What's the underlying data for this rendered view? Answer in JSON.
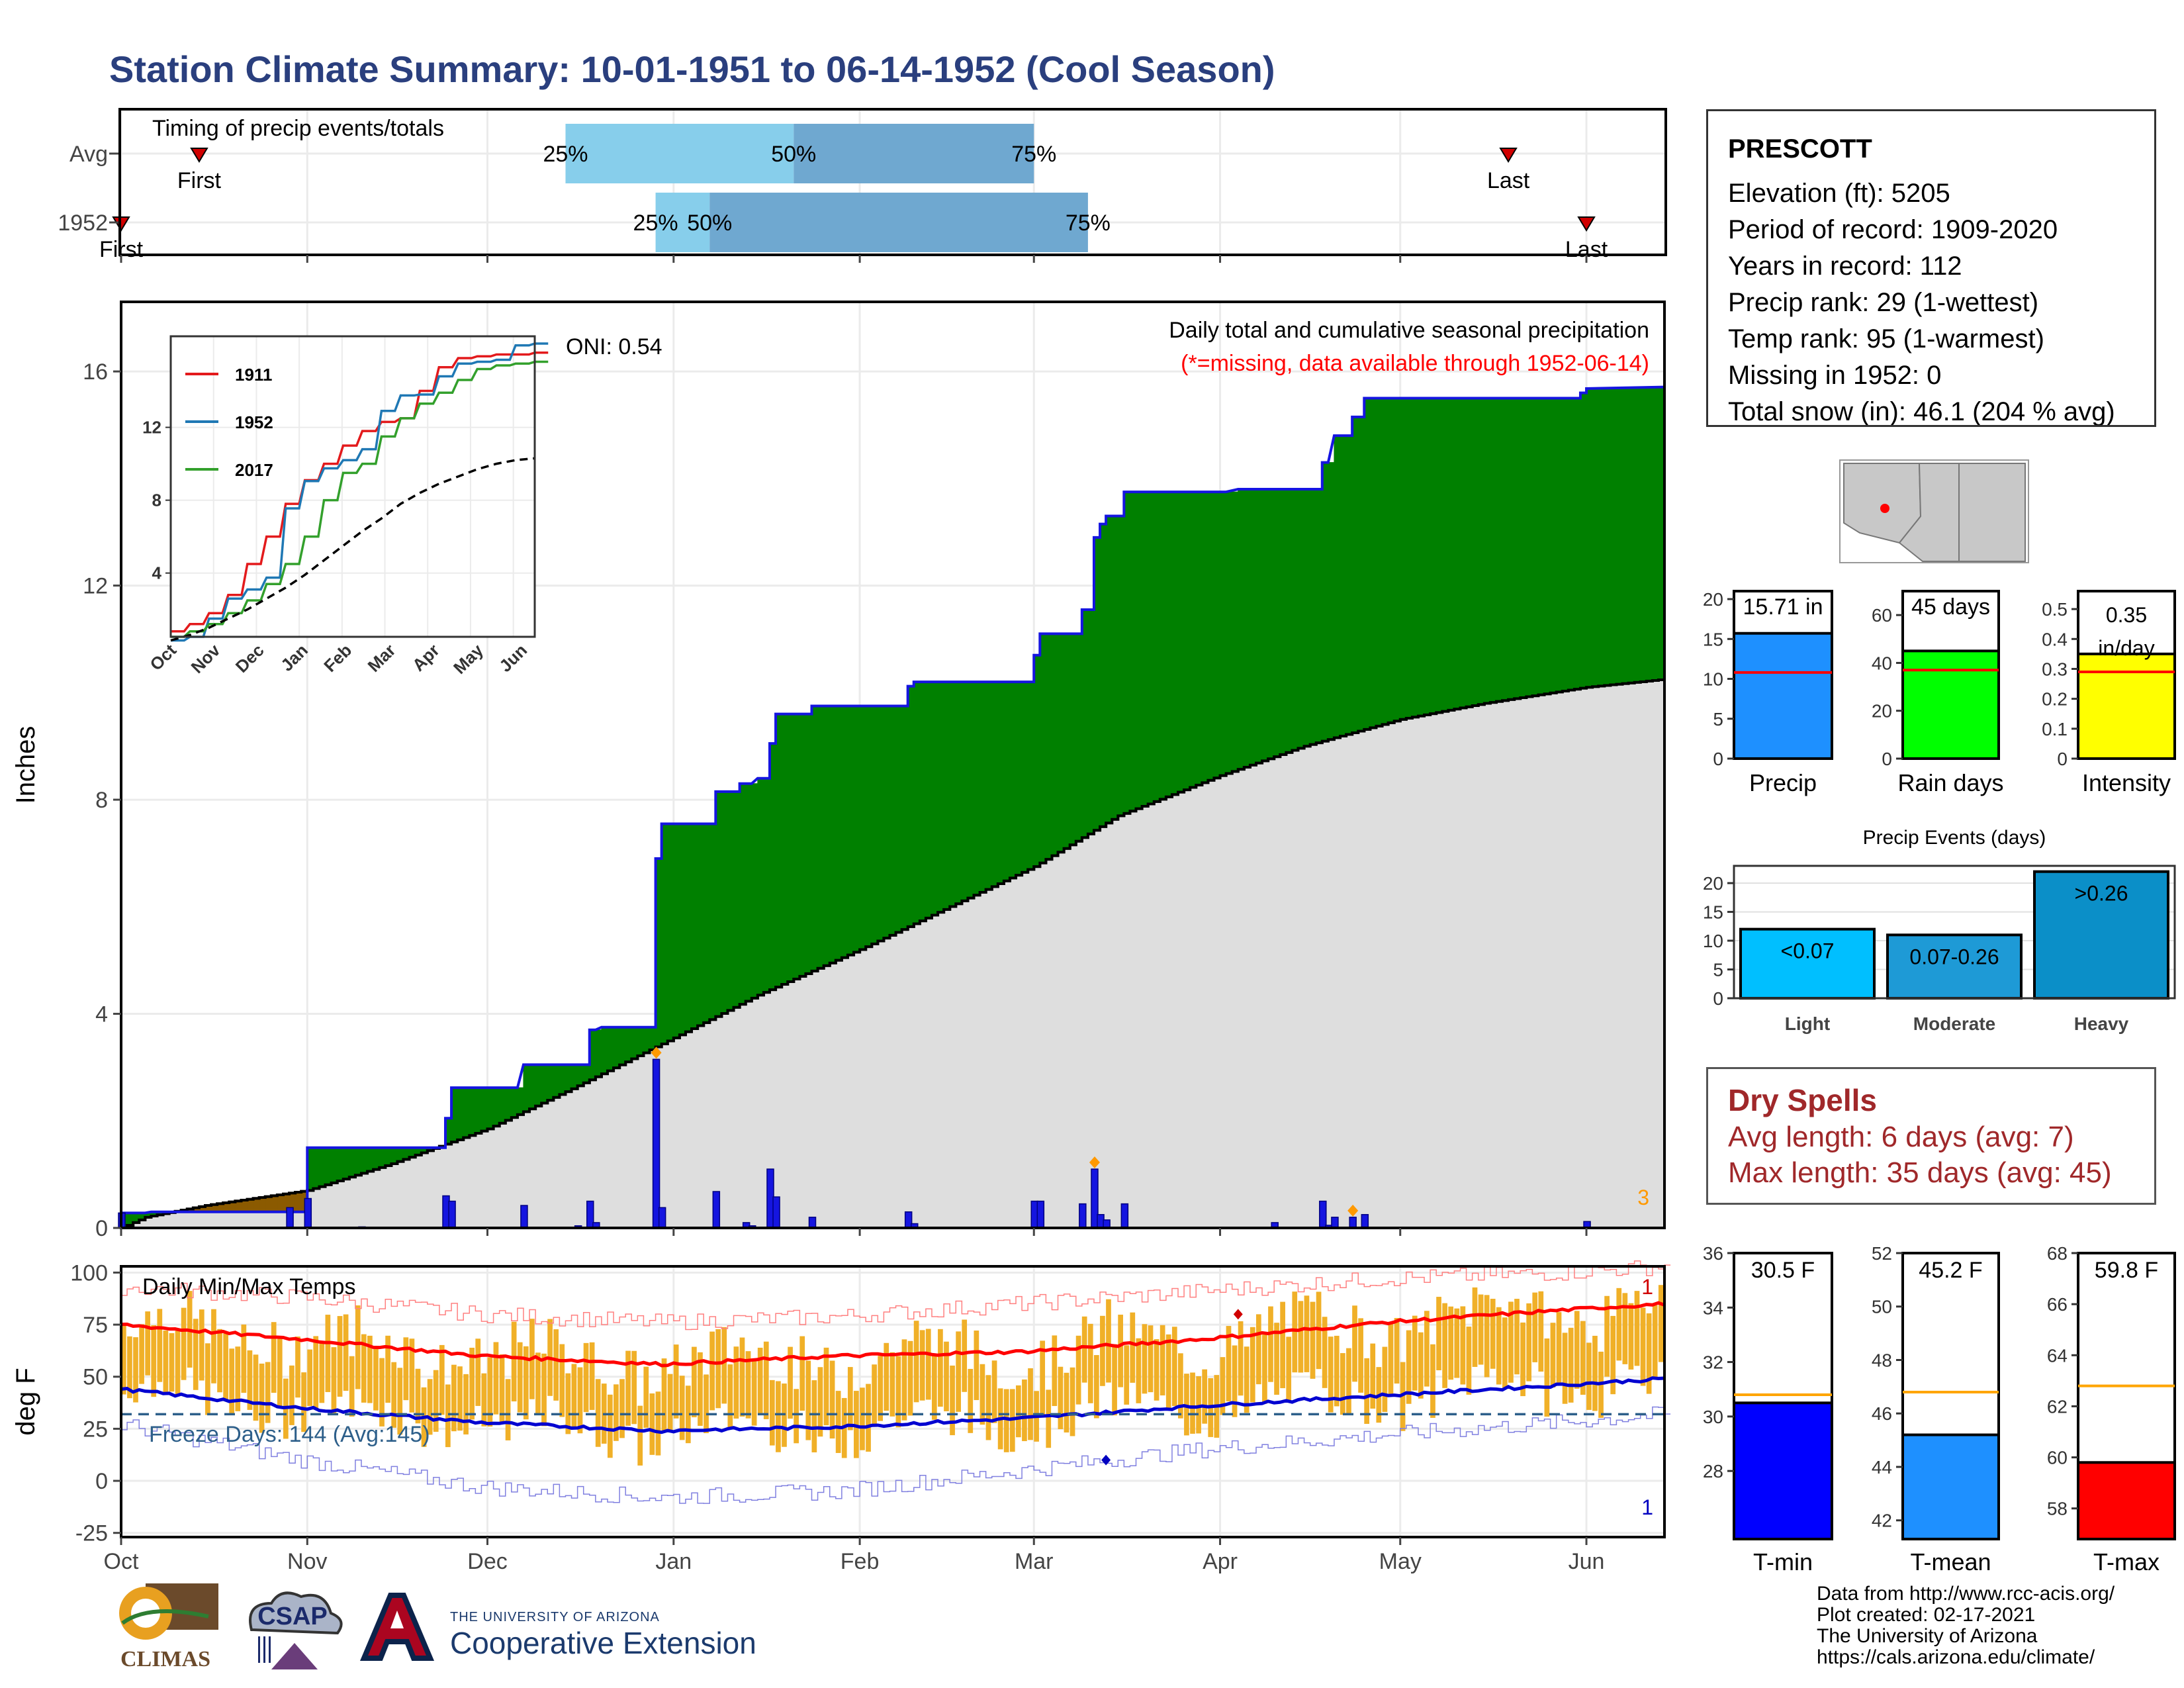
{
  "title": "Station Climate Summary: 10-01-1951 to 06-14-1952 (Cool Season)",
  "station": {
    "name": "PRESCOTT",
    "lines": [
      "Elevation (ft): 5205",
      "Period of record: 1909-2020",
      "Years in record: 112",
      "Precip rank: 29 (1-wettest)",
      "Temp rank: 95 (1-warmest)",
      "Missing in 1952: 0",
      "Total snow (in): 46.1 (204 % avg)"
    ]
  },
  "dry_spells": {
    "title": "Dry Spells",
    "avg": "Avg length: 6 days (avg: 7)",
    "max": "Max length: 35 days (avg: 45)"
  },
  "credits": {
    "lines": [
      "Data from http://www.rcc-acis.org/",
      "Plot created: 02-17-2021",
      "The University of Arizona",
      "https://cals.arizona.edu/climate/"
    ]
  },
  "logos": {
    "climas": "CLIMAS",
    "csap": "CSAP",
    "ua_small": "THE UNIVERSITY OF ARIZONA",
    "ua_big": "Cooperative Extension"
  },
  "colors": {
    "title": "#2a3f7e",
    "green_surplus": "#008000",
    "brown_deficit": "#8b5a00",
    "avg_gray": "#dedede",
    "cum_line": "#1515e0",
    "bar_blue": "#1515e0",
    "temp_bar": "#f0b028",
    "tmax_line": "#ff0000",
    "tmin_line": "#0000d0",
    "light_blue": "#87ceeb",
    "mid_blue": "#6fa8d0",
    "dry_red": "#a0282a"
  },
  "chart_data": {
    "timing": {
      "title": "Timing of precip events/totals",
      "rows": [
        {
          "name": "Avg",
          "first_label": "First",
          "first_date": "1951-10-14",
          "last_label": "Last",
          "last_date": "1952-05-19",
          "p25": "1951-12-14",
          "p50": "1952-01-21",
          "p75": "1952-03-01",
          "p25_label": "25%",
          "p50_label": "50%",
          "p75_label": "75%"
        },
        {
          "name": "1952",
          "first_label": "First",
          "first_date": "1951-10-01",
          "last_label": "Last",
          "last_date": "1952-06-01",
          "p25": "1951-12-29",
          "p50": "1952-01-07",
          "p75": "1952-03-10",
          "p25_label": "25%",
          "p50_label": "50%",
          "p75_label": "75%"
        }
      ]
    },
    "precip": {
      "type": "area",
      "title": "Daily total and cumulative seasonal precipitation",
      "subtitle": "(*=missing, data available through 1952-06-14)",
      "oni": "ONI: 0.54",
      "ylabel": "Inches",
      "ylim": [
        0,
        17.3
      ],
      "yticks": [
        0,
        4,
        8,
        12,
        16
      ],
      "xlim": [
        "1951-10-01",
        "1952-06-14"
      ],
      "month_ticks": [
        "1951-10-01",
        "1951-11-01",
        "1951-12-01",
        "1952-01-01",
        "1952-02-01",
        "1952-03-01",
        "1952-04-01",
        "1952-05-01",
        "1952-06-01"
      ],
      "corner_count": "3",
      "cumulative_steps": [
        [
          "1951-10-01",
          0.28
        ],
        [
          "1951-10-05",
          0.28
        ],
        [
          "1951-10-06",
          0.3
        ],
        [
          "1951-11-01",
          0.3
        ],
        [
          "1951-11-01",
          1.5
        ],
        [
          "1951-11-24",
          1.5
        ],
        [
          "1951-11-24",
          2.05
        ],
        [
          "1951-11-25",
          2.05
        ],
        [
          "1951-11-25",
          2.62
        ],
        [
          "1951-12-06",
          2.62
        ],
        [
          "1951-12-07",
          3.05
        ],
        [
          "1951-12-18",
          3.05
        ],
        [
          "1951-12-18",
          3.7
        ],
        [
          "1951-12-19",
          3.7
        ],
        [
          "1951-12-20",
          3.75
        ],
        [
          "1951-12-29",
          3.75
        ],
        [
          "1951-12-29",
          6.9
        ],
        [
          "1951-12-30",
          6.9
        ],
        [
          "1951-12-30",
          7.55
        ],
        [
          "1952-01-08",
          7.55
        ],
        [
          "1952-01-08",
          8.15
        ],
        [
          "1952-01-12",
          8.15
        ],
        [
          "1952-01-12",
          8.3
        ],
        [
          "1952-01-14",
          8.3
        ],
        [
          "1952-01-15",
          8.4
        ],
        [
          "1952-01-17",
          8.4
        ],
        [
          "1952-01-17",
          9.05
        ],
        [
          "1952-01-18",
          9.05
        ],
        [
          "1952-01-18",
          9.6
        ],
        [
          "1952-01-24",
          9.6
        ],
        [
          "1952-01-24",
          9.75
        ],
        [
          "1952-02-09",
          9.75
        ],
        [
          "1952-02-09",
          10.12
        ],
        [
          "1952-02-10",
          10.12
        ],
        [
          "1952-02-10",
          10.2
        ],
        [
          "1952-02-29",
          10.2
        ],
        [
          "1952-03-01",
          10.2
        ],
        [
          "1952-03-01",
          10.7
        ],
        [
          "1952-03-02",
          10.7
        ],
        [
          "1952-03-02",
          11.1
        ],
        [
          "1952-03-09",
          11.1
        ],
        [
          "1952-03-09",
          11.55
        ],
        [
          "1952-03-11",
          11.55
        ],
        [
          "1952-03-11",
          12.9
        ],
        [
          "1952-03-12",
          12.9
        ],
        [
          "1952-03-12",
          13.15
        ],
        [
          "1952-03-13",
          13.15
        ],
        [
          "1952-03-13",
          13.3
        ],
        [
          "1952-03-16",
          13.3
        ],
        [
          "1952-03-16",
          13.75
        ],
        [
          "1952-04-02",
          13.75
        ],
        [
          "1952-04-04",
          13.8
        ],
        [
          "1952-04-18",
          13.8
        ],
        [
          "1952-04-18",
          14.3
        ],
        [
          "1952-04-19",
          14.3
        ],
        [
          "1952-04-20",
          14.8
        ],
        [
          "1952-04-23",
          14.8
        ],
        [
          "1952-04-23",
          15.15
        ],
        [
          "1952-04-25",
          15.15
        ],
        [
          "1952-04-25",
          15.5
        ],
        [
          "1952-05-31",
          15.5
        ],
        [
          "1952-05-31",
          15.6
        ],
        [
          "1952-06-01",
          15.6
        ],
        [
          "1952-06-01",
          15.68
        ],
        [
          "1952-06-14",
          15.71
        ]
      ],
      "avg_cumulative": [
        [
          "1951-10-01",
          0.0
        ],
        [
          "1951-10-05",
          0.2
        ],
        [
          "1951-10-15",
          0.42
        ],
        [
          "1951-11-01",
          0.7
        ],
        [
          "1951-11-15",
          1.2
        ],
        [
          "1951-12-01",
          1.85
        ],
        [
          "1951-12-15",
          2.6
        ],
        [
          "1952-01-01",
          3.55
        ],
        [
          "1952-01-15",
          4.35
        ],
        [
          "1952-02-01",
          5.2
        ],
        [
          "1952-02-15",
          5.95
        ],
        [
          "1952-03-01",
          6.75
        ],
        [
          "1952-03-15",
          7.7
        ],
        [
          "1952-04-01",
          8.45
        ],
        [
          "1952-04-15",
          9.0
        ],
        [
          "1952-05-01",
          9.5
        ],
        [
          "1952-05-15",
          9.8
        ],
        [
          "1952-06-01",
          10.1
        ],
        [
          "1952-06-14",
          10.25
        ]
      ],
      "daily": [
        [
          "1951-10-01",
          0.28
        ],
        [
          "1951-10-29",
          0.38
        ],
        [
          "1951-11-01",
          0.55
        ],
        [
          "1951-11-10",
          0.02
        ],
        [
          "1951-11-24",
          0.6
        ],
        [
          "1951-11-25",
          0.5
        ],
        [
          "1951-12-07",
          0.42
        ],
        [
          "1951-12-16",
          0.04
        ],
        [
          "1951-12-18",
          0.5
        ],
        [
          "1951-12-19",
          0.1
        ],
        [
          "1951-12-29",
          3.15
        ],
        [
          "1951-12-30",
          0.38
        ],
        [
          "1952-01-08",
          0.68
        ],
        [
          "1952-01-13",
          0.1
        ],
        [
          "1952-01-14",
          0.04
        ],
        [
          "1952-01-17",
          1.1
        ],
        [
          "1952-01-18",
          0.58
        ],
        [
          "1952-01-24",
          0.2
        ],
        [
          "1952-02-09",
          0.3
        ],
        [
          "1952-02-10",
          0.08
        ],
        [
          "1952-03-01",
          0.5
        ],
        [
          "1952-03-02",
          0.5
        ],
        [
          "1952-03-09",
          0.45
        ],
        [
          "1952-03-11",
          1.1
        ],
        [
          "1952-03-12",
          0.25
        ],
        [
          "1952-03-13",
          0.15
        ],
        [
          "1952-03-16",
          0.45
        ],
        [
          "1952-04-10",
          0.1
        ],
        [
          "1952-04-18",
          0.5
        ],
        [
          "1952-04-19",
          0.05
        ],
        [
          "1952-04-20",
          0.2
        ],
        [
          "1952-04-23",
          0.2
        ],
        [
          "1952-04-25",
          0.25
        ],
        [
          "1952-06-01",
          0.12
        ]
      ],
      "marked_days": [
        "1951-12-29",
        "1952-03-11",
        "1952-04-23"
      ]
    },
    "inset": {
      "type": "line",
      "ylim": [
        0.5,
        17
      ],
      "yticks": [
        4,
        8,
        12
      ],
      "month_labels": [
        "Oct",
        "Nov",
        "Dec",
        "Jan",
        "Feb",
        "Mar",
        "Apr",
        "May",
        "Jun"
      ],
      "series": [
        {
          "name": "1911",
          "color": "#e31a1c",
          "values": [
            0.8,
            1.2,
            1.8,
            2.8,
            4.5,
            6,
            7.8,
            9.1,
            10,
            11,
            11.8,
            12.3,
            12.5,
            14,
            15.3,
            15.8,
            15.9,
            16,
            16,
            16.1
          ]
        },
        {
          "name": "1952",
          "color": "#1f78b4",
          "values": [
            0.3,
            0.5,
            1.5,
            2.6,
            3.1,
            3.75,
            7.55,
            9.05,
            9.75,
            10.2,
            10.8,
            12.9,
            13.75,
            13.8,
            14.8,
            15.5,
            15.6,
            15.71,
            16.5,
            16.6
          ]
        },
        {
          "name": "2017",
          "color": "#33a02c",
          "values": [
            0.5,
            0.8,
            1.2,
            1.8,
            2.5,
            3.4,
            4.5,
            6,
            8,
            9.5,
            10,
            11.5,
            12.5,
            13.3,
            13.9,
            14.6,
            15.2,
            15.4,
            15.5,
            15.6
          ]
        },
        {
          "name": "",
          "color": "#000000",
          "values": [
            0.3,
            0.6,
            1.0,
            1.5,
            2.0,
            2.6,
            3.2,
            3.9,
            4.7,
            5.5,
            6.3,
            7.0,
            7.8,
            8.4,
            8.9,
            9.3,
            9.7,
            10.0,
            10.2,
            10.3
          ]
        }
      ]
    },
    "temps": {
      "type": "bar",
      "title": "Daily Min/Max Temps",
      "ylabel": "deg F",
      "ylim": [
        -27,
        103
      ],
      "yticks": [
        -25,
        0,
        25,
        50,
        75,
        100
      ],
      "freeze_line": 32,
      "freeze_label": "Freeze Days: 144 (Avg:145)",
      "months": [
        "Oct",
        "Nov",
        "Dec",
        "Jan",
        "Feb",
        "Mar",
        "Apr",
        "May",
        "Jun"
      ],
      "record_count_top": "1",
      "record_count_bottom": "1",
      "avg_max_knots": [
        [
          0,
          75
        ],
        [
          30,
          68
        ],
        [
          60,
          60
        ],
        [
          90,
          56
        ],
        [
          120,
          60
        ],
        [
          150,
          62
        ],
        [
          180,
          68
        ],
        [
          210,
          76
        ],
        [
          240,
          82
        ],
        [
          257,
          85
        ]
      ],
      "avg_min_knots": [
        [
          0,
          44
        ],
        [
          30,
          35
        ],
        [
          60,
          28
        ],
        [
          90,
          24
        ],
        [
          120,
          26
        ],
        [
          150,
          30
        ],
        [
          180,
          36
        ],
        [
          210,
          41
        ],
        [
          240,
          46
        ],
        [
          257,
          49
        ]
      ],
      "rec_max_knots": [
        [
          0,
          93
        ],
        [
          30,
          88
        ],
        [
          60,
          80
        ],
        [
          90,
          76
        ],
        [
          120,
          79
        ],
        [
          150,
          85
        ],
        [
          180,
          91
        ],
        [
          210,
          97
        ],
        [
          240,
          100
        ],
        [
          257,
          103
        ]
      ],
      "rec_min_knots": [
        [
          0,
          27
        ],
        [
          30,
          10
        ],
        [
          60,
          -3
        ],
        [
          90,
          -8
        ],
        [
          120,
          -5
        ],
        [
          150,
          5
        ],
        [
          180,
          15
        ],
        [
          210,
          22
        ],
        [
          240,
          28
        ],
        [
          257,
          32
        ]
      ],
      "record_marks": [
        {
          "day": 186,
          "value": 80,
          "kind": "max"
        },
        {
          "day": 164,
          "value": 10,
          "kind": "min"
        }
      ]
    },
    "side_bars": [
      {
        "label": "Precip",
        "value_label": "15.71 in",
        "value": 15.71,
        "avg": 10.8,
        "ylim": [
          0,
          21
        ],
        "yticks": [
          0,
          5,
          10,
          15,
          20
        ],
        "color": "#1e90ff"
      },
      {
        "label": "Rain days",
        "value_label": "45 days",
        "value": 45,
        "avg": 37,
        "ylim": [
          0,
          70
        ],
        "yticks": [
          0,
          20,
          40,
          60
        ],
        "color": "#00ff00"
      },
      {
        "label": "Intensity",
        "value_label": "0.35 in/day",
        "value": 0.35,
        "avg": 0.29,
        "ylim": [
          0,
          0.56
        ],
        "yticks": [
          0.0,
          0.1,
          0.2,
          0.3,
          0.4,
          0.5
        ],
        "color": "#ffff00"
      }
    ],
    "events": {
      "type": "bar",
      "title": "Precip Events (days)",
      "categories": [
        "Light",
        "Moderate",
        "Heavy"
      ],
      "values": [
        12,
        11,
        22
      ],
      "bar_labels": [
        "<0.07",
        "0.07-0.26",
        ">0.26"
      ],
      "ylim": [
        0,
        23
      ],
      "yticks": [
        0,
        5,
        10,
        15,
        20
      ],
      "colors": [
        "#00bfff",
        "#1e9ad6",
        "#0b8fc8"
      ]
    },
    "temp_bars": [
      {
        "label": "T-min",
        "value_label": "30.5 F",
        "value": 30.5,
        "avg": 30.8,
        "ylim": [
          25.5,
          36
        ],
        "yticks": [
          28,
          30,
          32,
          34,
          36
        ],
        "color": "#0000ff"
      },
      {
        "label": "T-mean",
        "value_label": "45.2 F",
        "value": 45.2,
        "avg": 46.8,
        "ylim": [
          41.3,
          52
        ],
        "yticks": [
          42,
          44,
          46,
          48,
          50,
          52
        ],
        "color": "#1e90ff"
      },
      {
        "label": "T-max",
        "value_label": "59.8 F",
        "value": 59.8,
        "avg": 62.8,
        "ylim": [
          56.8,
          68
        ],
        "yticks": [
          58,
          60,
          62,
          64,
          66,
          68
        ],
        "color": "#ff0000"
      }
    ]
  }
}
